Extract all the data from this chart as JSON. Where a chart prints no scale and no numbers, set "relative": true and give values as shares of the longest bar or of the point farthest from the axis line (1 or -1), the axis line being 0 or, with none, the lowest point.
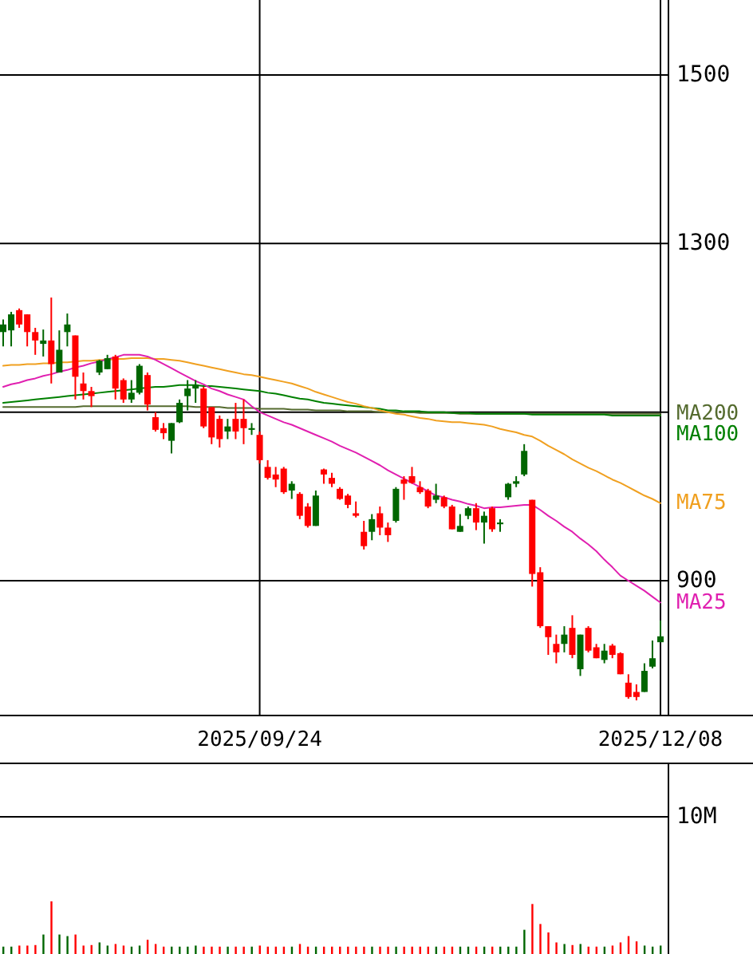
{
  "chart_data": [
    {
      "type": "candlestick",
      "categories": [
        null,
        null,
        null,
        null,
        null,
        null,
        null,
        null,
        null,
        null,
        null,
        null,
        null,
        null,
        null,
        null,
        null,
        null,
        null,
        null,
        null,
        null,
        null,
        null,
        null,
        null,
        null,
        null,
        null,
        null,
        null,
        null,
        "2025/09/24",
        null,
        null,
        null,
        null,
        null,
        null,
        null,
        null,
        null,
        null,
        null,
        null,
        null,
        null,
        null,
        null,
        null,
        null,
        null,
        null,
        null,
        null,
        null,
        null,
        null,
        null,
        null,
        null,
        null,
        null,
        null,
        null,
        null,
        null,
        null,
        null,
        null,
        null,
        null,
        null,
        null,
        null,
        null,
        null,
        null,
        null,
        null,
        null,
        null,
        "2025/12/08"
      ],
      "ohlc": [
        [
          1195,
          1210,
          1178,
          1204
        ],
        [
          1197,
          1219,
          1178,
          1216
        ],
        [
          1221,
          1223,
          1200,
          1204
        ],
        [
          1216,
          1216,
          1178,
          1195
        ],
        [
          1195,
          1200,
          1168,
          1185
        ],
        [
          1181,
          1198,
          1166,
          1185
        ],
        [
          1185,
          1236,
          1134,
          1157
        ],
        [
          1147,
          1197,
          1147,
          1174
        ],
        [
          1195,
          1217,
          1178,
          1204
        ],
        [
          1191,
          1191,
          1115,
          1142
        ],
        [
          1134,
          1147,
          1115,
          1125
        ],
        [
          1125,
          1130,
          1106,
          1119
        ],
        [
          1147,
          1162,
          1144,
          1161
        ],
        [
          1151,
          1168,
          1151,
          1164
        ],
        [
          1166,
          1168,
          1115,
          1128
        ],
        [
          1138,
          1140,
          1111,
          1115
        ],
        [
          1115,
          1138,
          1111,
          1123
        ],
        [
          1123,
          1157,
          1121,
          1155
        ],
        [
          1144,
          1147,
          1102,
          1109
        ],
        [
          1094,
          1100,
          1077,
          1079
        ],
        [
          1081,
          1087,
          1068,
          1075
        ],
        [
          1066,
          1087,
          1051,
          1087
        ],
        [
          1088,
          1115,
          1087,
          1111
        ],
        [
          1119,
          1138,
          1102,
          1128
        ],
        [
          1128,
          1138,
          1111,
          1132
        ],
        [
          1128,
          1130,
          1081,
          1083
        ],
        [
          1106,
          1106,
          1062,
          1070
        ],
        [
          1092,
          1096,
          1058,
          1068
        ],
        [
          1077,
          1092,
          1068,
          1083
        ],
        [
          1092,
          1111,
          1068,
          1077
        ],
        [
          1092,
          1115,
          1062,
          1081
        ],
        [
          1079,
          1087,
          1073,
          1081
        ],
        [
          1073,
          1077,
          1039,
          1043
        ],
        [
          1035,
          1043,
          1020,
          1022
        ],
        [
          1026,
          1035,
          1011,
          1020
        ],
        [
          1033,
          1035,
          1003,
          1005
        ],
        [
          1007,
          1018,
          997,
          1015
        ],
        [
          1003,
          1005,
          973,
          977
        ],
        [
          988,
          992,
          963,
          965
        ],
        [
          965,
          1007,
          965,
          1001
        ],
        [
          1032,
          1033,
          1015,
          1026
        ],
        [
          1022,
          1028,
          1011,
          1015
        ],
        [
          1009,
          1011,
          996,
          997
        ],
        [
          1001,
          1003,
          986,
          990
        ],
        [
          980,
          994,
          975,
          977
        ],
        [
          958,
          971,
          937,
          941
        ],
        [
          958,
          979,
          948,
          973
        ],
        [
          980,
          988,
          954,
          963
        ],
        [
          963,
          969,
          946,
          954
        ],
        [
          971,
          1011,
          969,
          1009
        ],
        [
          1020,
          1024,
          996,
          1015
        ],
        [
          1024,
          1035,
          1015,
          1016
        ],
        [
          1011,
          1018,
          1003,
          1005
        ],
        [
          1007,
          1009,
          986,
          988
        ],
        [
          996,
          1015,
          992,
          1001
        ],
        [
          999,
          1001,
          986,
          988
        ],
        [
          988,
          990,
          961,
          961
        ],
        [
          958,
          979,
          958,
          965
        ],
        [
          977,
          988,
          973,
          986
        ],
        [
          986,
          992,
          960,
          969
        ],
        [
          969,
          982,
          944,
          977
        ],
        [
          986,
          988,
          958,
          961
        ],
        [
          967,
          973,
          958,
          969
        ],
        [
          999,
          1016,
          996,
          1015
        ],
        [
          1015,
          1024,
          1011,
          1018
        ],
        [
          1026,
          1062,
          1024,
          1054
        ],
        [
          996,
          996,
          893,
          908
        ],
        [
          910,
          916,
          844,
          846
        ],
        [
          846,
          846,
          812,
          833
        ],
        [
          825,
          836,
          802,
          815
        ],
        [
          825,
          846,
          815,
          836
        ],
        [
          844,
          859,
          808,
          812
        ],
        [
          795,
          836,
          787,
          836
        ],
        [
          844,
          846,
          815,
          817
        ],
        [
          821,
          825,
          808,
          808
        ],
        [
          806,
          825,
          802,
          817
        ],
        [
          823,
          825,
          808,
          812
        ],
        [
          814,
          815,
          789,
          789
        ],
        [
          779,
          789,
          760,
          762
        ],
        [
          768,
          777,
          758,
          762
        ],
        [
          768,
          802,
          768,
          793
        ],
        [
          798,
          829,
          796,
          808
        ],
        [
          827,
          853,
          827,
          834
        ]
      ],
      "colors": [
        "#006600",
        "#006600",
        "#ff0000",
        "#ff0000",
        "#ff0000",
        "#006600",
        "#ff0000",
        "#006600",
        "#006600",
        "#ff0000",
        "#ff0000",
        "#ff0000",
        "#006600",
        "#006600",
        "#ff0000",
        "#ff0000",
        "#006600",
        "#006600",
        "#ff0000",
        "#ff0000",
        "#ff0000",
        "#006600",
        "#006600",
        "#006600",
        "#006600",
        "#ff0000",
        "#ff0000",
        "#ff0000",
        "#006600",
        "#ff0000",
        "#ff0000",
        "#006600",
        "#ff0000",
        "#ff0000",
        "#ff0000",
        "#ff0000",
        "#006600",
        "#ff0000",
        "#ff0000",
        "#006600",
        "#ff0000",
        "#ff0000",
        "#ff0000",
        "#ff0000",
        "#ff0000",
        "#ff0000",
        "#006600",
        "#ff0000",
        "#ff0000",
        "#006600",
        "#ff0000",
        "#ff0000",
        "#ff0000",
        "#ff0000",
        "#006600",
        "#ff0000",
        "#ff0000",
        "#006600",
        "#006600",
        "#ff0000",
        "#006600",
        "#ff0000",
        "#006600",
        "#006600",
        "#006600",
        "#006600",
        "#ff0000",
        "#ff0000",
        "#ff0000",
        "#ff0000",
        "#006600",
        "#ff0000",
        "#006600",
        "#ff0000",
        "#ff0000",
        "#006600",
        "#ff0000",
        "#ff0000",
        "#ff0000",
        "#ff0000",
        "#006600",
        "#006600",
        "#006600"
      ],
      "series": [
        {
          "type": "line",
          "name": "MA200",
          "color": "#556b2f",
          "values": [
            1106,
            1106,
            1106,
            1106,
            1106,
            1106,
            1106,
            1106,
            1106,
            1106,
            1107,
            1107,
            1107,
            1107,
            1107,
            1107,
            1107,
            1107,
            1107,
            1107,
            1107,
            1107,
            1107,
            1107,
            1106,
            1106,
            1106,
            1106,
            1105,
            1105,
            1105,
            1105,
            1104,
            1104,
            1104,
            1104,
            1103,
            1103,
            1103,
            1102,
            1102,
            1102,
            1102,
            1101,
            1101,
            1101,
            1101,
            1100,
            1100,
            1100,
            1100,
            1100,
            1099,
            1099,
            1099,
            1099,
            1099,
            1098,
            1098,
            1098,
            1098,
            1098,
            1098,
            1098,
            1098,
            1098,
            1098,
            1098,
            1098,
            1098,
            1098,
            1098,
            1098,
            1098,
            1098,
            1098,
            1098,
            1098,
            1098,
            1098,
            1098,
            1098,
            1098
          ]
        },
        {
          "type": "line",
          "name": "MA100",
          "color": "#008000",
          "values": [
            1111,
            1112,
            1113,
            1114,
            1115,
            1116,
            1117,
            1118,
            1119,
            1120,
            1121,
            1122,
            1123,
            1124,
            1125,
            1126,
            1127,
            1128,
            1129,
            1130,
            1130,
            1131,
            1132,
            1132,
            1132,
            1131,
            1131,
            1130,
            1129,
            1128,
            1127,
            1126,
            1125,
            1123,
            1122,
            1120,
            1118,
            1116,
            1115,
            1113,
            1111,
            1110,
            1109,
            1108,
            1107,
            1106,
            1105,
            1104,
            1102,
            1102,
            1101,
            1101,
            1101,
            1100,
            1100,
            1100,
            1099,
            1099,
            1099,
            1098,
            1098,
            1098,
            1098,
            1098,
            1098,
            1098,
            1097,
            1097,
            1097,
            1097,
            1097,
            1097,
            1097,
            1097,
            1097,
            1097,
            1096,
            1096,
            1096,
            1096,
            1096,
            1096,
            1096
          ]
        },
        {
          "type": "line",
          "name": "MA75",
          "color": "#f0a020",
          "values": [
            1155,
            1156,
            1156,
            1157,
            1157,
            1158,
            1158,
            1159,
            1159,
            1160,
            1161,
            1161,
            1162,
            1162,
            1163,
            1163,
            1164,
            1164,
            1164,
            1163,
            1163,
            1162,
            1161,
            1159,
            1157,
            1155,
            1153,
            1151,
            1149,
            1147,
            1145,
            1144,
            1142,
            1140,
            1138,
            1136,
            1134,
            1131,
            1128,
            1124,
            1121,
            1118,
            1115,
            1112,
            1110,
            1107,
            1105,
            1102,
            1100,
            1098,
            1097,
            1095,
            1093,
            1092,
            1090,
            1089,
            1088,
            1088,
            1087,
            1086,
            1085,
            1083,
            1080,
            1078,
            1076,
            1073,
            1071,
            1066,
            1060,
            1055,
            1050,
            1044,
            1039,
            1034,
            1030,
            1025,
            1020,
            1016,
            1011,
            1006,
            1001,
            997,
            992
          ]
        },
        {
          "type": "line",
          "name": "MA25",
          "color": "#e020b0",
          "values": [
            1130,
            1133,
            1135,
            1138,
            1140,
            1143,
            1145,
            1148,
            1150,
            1153,
            1155,
            1158,
            1160,
            1163,
            1165,
            1168,
            1168,
            1168,
            1166,
            1162,
            1157,
            1152,
            1147,
            1142,
            1137,
            1133,
            1128,
            1125,
            1121,
            1118,
            1115,
            1107,
            1100,
            1096,
            1092,
            1088,
            1085,
            1081,
            1077,
            1073,
            1069,
            1065,
            1060,
            1056,
            1052,
            1047,
            1042,
            1037,
            1031,
            1026,
            1021,
            1016,
            1011,
            1006,
            1001,
            999,
            996,
            994,
            991,
            989,
            986,
            987,
            987,
            988,
            989,
            990,
            990,
            984,
            977,
            971,
            964,
            958,
            950,
            943,
            935,
            925,
            916,
            906,
            900,
            894,
            888,
            881,
            874
          ]
        }
      ],
      "ylim": [
        741,
        1589
      ],
      "yticks": [
        900,
        {
          "value": 1100,
          "label": null
        },
        1300,
        1500
      ],
      "grid": true
    },
    {
      "type": "bar",
      "relative": true,
      "categories": [
        null,
        null,
        null,
        null,
        null,
        null,
        null,
        null,
        null,
        null,
        null,
        null,
        null,
        null,
        null,
        null,
        null,
        null,
        null,
        null,
        null,
        null,
        null,
        null,
        null,
        null,
        null,
        null,
        null,
        null,
        null,
        null,
        null,
        null,
        null,
        null,
        null,
        null,
        null,
        null,
        null,
        null,
        null,
        null,
        null,
        null,
        null,
        null,
        null,
        null,
        null,
        null,
        null,
        null,
        null,
        null,
        null,
        null,
        null,
        null,
        null,
        null,
        null,
        null,
        null,
        null,
        null,
        null,
        null,
        null,
        null,
        null,
        null,
        null,
        null,
        null,
        null,
        null,
        null,
        null,
        null,
        null,
        null
      ],
      "values": [
        0.14,
        0.14,
        0.16,
        0.16,
        0.17,
        0.37,
        1,
        0.37,
        0.34,
        0.37,
        0.16,
        0.17,
        0.22,
        0.16,
        0.19,
        0.16,
        0.14,
        0.16,
        0.27,
        0.19,
        0.14,
        0.14,
        0.14,
        0.14,
        0.16,
        0.14,
        0.14,
        0.14,
        0.14,
        0.14,
        0.14,
        0.14,
        0.16,
        0.14,
        0.14,
        0.14,
        0.14,
        0.19,
        0.14,
        0.14,
        0.14,
        0.14,
        0.14,
        0.14,
        0.14,
        0.14,
        0.14,
        0.14,
        0.14,
        0.14,
        0.14,
        0.14,
        0.14,
        0.14,
        0.14,
        0.14,
        0.14,
        0.14,
        0.14,
        0.14,
        0.14,
        0.14,
        0.14,
        0.14,
        0.14,
        0.46,
        0.95,
        0.57,
        0.41,
        0.22,
        0.19,
        0.17,
        0.19,
        0.14,
        0.14,
        0.14,
        0.16,
        0.22,
        0.34,
        0.24,
        0.16,
        0.14,
        0.16
      ],
      "colors": [
        "#006600",
        "#006600",
        "#ff0000",
        "#ff0000",
        "#ff0000",
        "#006600",
        "#ff0000",
        "#006600",
        "#006600",
        "#ff0000",
        "#ff0000",
        "#ff0000",
        "#006600",
        "#006600",
        "#ff0000",
        "#ff0000",
        "#006600",
        "#006600",
        "#ff0000",
        "#ff0000",
        "#ff0000",
        "#006600",
        "#006600",
        "#006600",
        "#006600",
        "#ff0000",
        "#ff0000",
        "#ff0000",
        "#006600",
        "#ff0000",
        "#ff0000",
        "#006600",
        "#ff0000",
        "#ff0000",
        "#ff0000",
        "#ff0000",
        "#006600",
        "#ff0000",
        "#ff0000",
        "#006600",
        "#ff0000",
        "#ff0000",
        "#ff0000",
        "#ff0000",
        "#ff0000",
        "#ff0000",
        "#006600",
        "#ff0000",
        "#ff0000",
        "#006600",
        "#ff0000",
        "#ff0000",
        "#ff0000",
        "#ff0000",
        "#006600",
        "#ff0000",
        "#ff0000",
        "#006600",
        "#006600",
        "#ff0000",
        "#006600",
        "#ff0000",
        "#006600",
        "#006600",
        "#006600",
        "#006600",
        "#ff0000",
        "#ff0000",
        "#ff0000",
        "#ff0000",
        "#006600",
        "#ff0000",
        "#006600",
        "#ff0000",
        "#ff0000",
        "#006600",
        "#ff0000",
        "#ff0000",
        "#ff0000",
        "#ff0000",
        "#006600",
        "#006600",
        "#006600"
      ],
      "annotations": [
        "10M"
      ]
    }
  ]
}
